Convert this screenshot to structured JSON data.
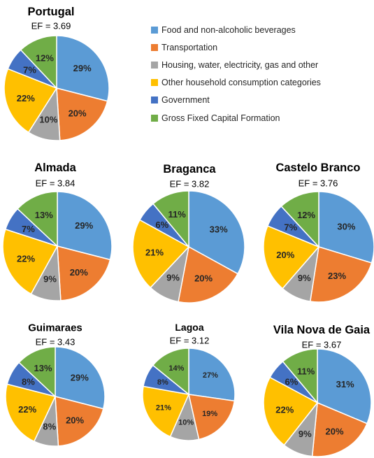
{
  "chart_data": {
    "type": "pie",
    "colors": {
      "food": "#5B9BD5",
      "transport": "#ED7D31",
      "housing": "#A5A5A5",
      "other": "#FFC000",
      "government": "#4472C4",
      "gfcf": "#70AD47"
    },
    "legend": {
      "placement": "top-right",
      "entries": [
        {
          "key": "food",
          "label": "Food and non-alcoholic beverages"
        },
        {
          "key": "transport",
          "label": "Transportation"
        },
        {
          "key": "housing",
          "label": "Housing, water, electricity, gas and other"
        },
        {
          "key": "other",
          "label": "Other household  consumption categories"
        },
        {
          "key": "government",
          "label": "Government"
        },
        {
          "key": "gfcf",
          "label": "Gross Fixed Capital Formation"
        }
      ]
    },
    "pies": [
      {
        "title": "Portugal",
        "ef": "EF = 3.69",
        "slices": [
          {
            "key": "food",
            "value": 29,
            "label": "29%"
          },
          {
            "key": "transport",
            "value": 20,
            "label": "20%"
          },
          {
            "key": "housing",
            "value": 10,
            "label": "10%"
          },
          {
            "key": "other",
            "value": 22,
            "label": "22%"
          },
          {
            "key": "government",
            "value": 7,
            "label": "7%"
          },
          {
            "key": "gfcf",
            "value": 12,
            "label": "12%"
          }
        ]
      },
      {
        "title": "Almada",
        "ef": "EF = 3.84",
        "slices": [
          {
            "key": "food",
            "value": 29,
            "label": "29%"
          },
          {
            "key": "transport",
            "value": 20,
            "label": "20%"
          },
          {
            "key": "housing",
            "value": 9,
            "label": "9%"
          },
          {
            "key": "other",
            "value": 22,
            "label": "22%"
          },
          {
            "key": "government",
            "value": 7,
            "label": "7%"
          },
          {
            "key": "gfcf",
            "value": 13,
            "label": "13%"
          }
        ]
      },
      {
        "title": "Braganca",
        "ef": "EF = 3.82",
        "slices": [
          {
            "key": "food",
            "value": 33,
            "label": "33%"
          },
          {
            "key": "transport",
            "value": 20,
            "label": "20%"
          },
          {
            "key": "housing",
            "value": 9,
            "label": "9%"
          },
          {
            "key": "other",
            "value": 21,
            "label": "21%"
          },
          {
            "key": "government",
            "value": 6,
            "label": "6%"
          },
          {
            "key": "gfcf",
            "value": 11,
            "label": "11%"
          }
        ]
      },
      {
        "title": "Castelo Branco",
        "ef": "EF = 3.76",
        "slices": [
          {
            "key": "food",
            "value": 30,
            "label": "30%"
          },
          {
            "key": "transport",
            "value": 23,
            "label": "23%"
          },
          {
            "key": "housing",
            "value": 9,
            "label": "9%"
          },
          {
            "key": "other",
            "value": 20,
            "label": "20%"
          },
          {
            "key": "government",
            "value": 7,
            "label": "7%"
          },
          {
            "key": "gfcf",
            "value": 12,
            "label": "12%"
          }
        ]
      },
      {
        "title": "Guimaraes",
        "ef": "EF = 3.43",
        "slices": [
          {
            "key": "food",
            "value": 29,
            "label": "29%"
          },
          {
            "key": "transport",
            "value": 20,
            "label": "20%"
          },
          {
            "key": "housing",
            "value": 8,
            "label": "8%"
          },
          {
            "key": "other",
            "value": 22,
            "label": "22%"
          },
          {
            "key": "government",
            "value": 8,
            "label": "8%"
          },
          {
            "key": "gfcf",
            "value": 13,
            "label": "13%"
          }
        ]
      },
      {
        "title": "Lagoa",
        "ef": "EF = 3.12",
        "slices": [
          {
            "key": "food",
            "value": 27,
            "label": "27%"
          },
          {
            "key": "transport",
            "value": 19,
            "label": "19%"
          },
          {
            "key": "housing",
            "value": 10,
            "label": "10%"
          },
          {
            "key": "other",
            "value": 21,
            "label": "21%"
          },
          {
            "key": "government",
            "value": 8,
            "label": "8%"
          },
          {
            "key": "gfcf",
            "value": 14,
            "label": "14%"
          }
        ]
      },
      {
        "title": "Vila Nova de Gaia",
        "ef": "EF = 3.67",
        "slices": [
          {
            "key": "food",
            "value": 31,
            "label": "31%"
          },
          {
            "key": "transport",
            "value": 20,
            "label": "20%"
          },
          {
            "key": "housing",
            "value": 9,
            "label": "9%"
          },
          {
            "key": "other",
            "value": 22,
            "label": "22%"
          },
          {
            "key": "government",
            "value": 6,
            "label": "6%"
          },
          {
            "key": "gfcf",
            "value": 11,
            "label": "11%"
          }
        ]
      }
    ]
  }
}
